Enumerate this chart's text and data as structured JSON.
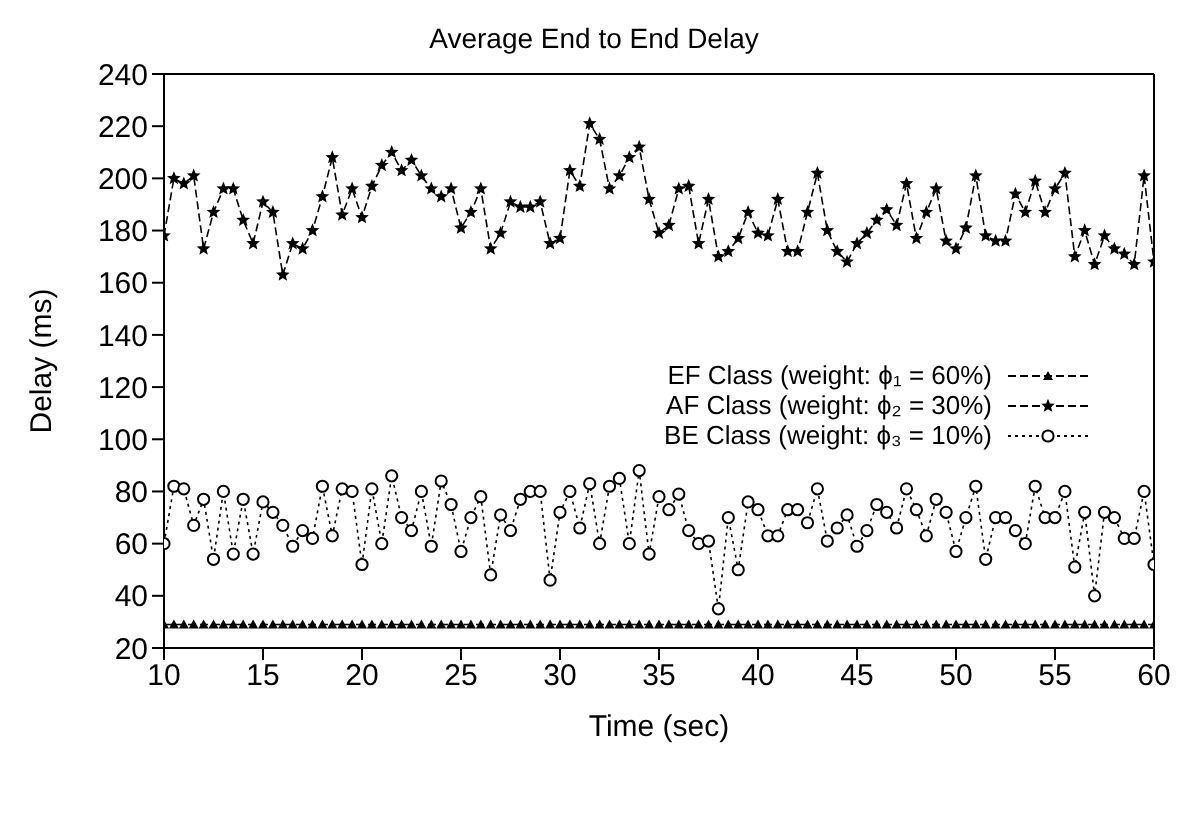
{
  "chart_data": {
    "type": "line",
    "title": "Average End to End Delay",
    "xlabel": "Time (sec)",
    "ylabel": "Delay (ms)",
    "x": [
      10,
      10.5,
      11,
      11.5,
      12,
      12.5,
      13,
      13.5,
      14,
      14.5,
      15,
      15.5,
      16,
      16.5,
      17,
      17.5,
      18,
      18.5,
      19,
      19.5,
      20,
      20.5,
      21,
      21.5,
      22,
      22.5,
      23,
      23.5,
      24,
      24.5,
      25,
      25.5,
      26,
      26.5,
      27,
      27.5,
      28,
      28.5,
      29,
      29.5,
      30,
      30.5,
      31,
      31.5,
      32,
      32.5,
      33,
      33.5,
      34,
      34.5,
      35,
      35.5,
      36,
      36.5,
      37,
      37.5,
      38,
      38.5,
      39,
      39.5,
      40,
      40.5,
      41,
      41.5,
      42,
      42.5,
      43,
      43.5,
      44,
      44.5,
      45,
      45.5,
      46,
      46.5,
      47,
      47.5,
      48,
      48.5,
      49,
      49.5,
      50,
      50.5,
      51,
      51.5,
      52,
      52.5,
      53,
      53.5,
      54,
      54.5,
      55,
      55.5,
      56,
      56.5,
      57,
      57.5,
      58,
      58.5,
      59,
      59.5,
      60
    ],
    "series": [
      {
        "name": "EF Class (weight: ϕ₁ = 60%)",
        "color": "#000000",
        "marker": "triangle",
        "line_style": "dashed",
        "values": [
          29,
          29,
          29,
          29,
          29,
          29,
          29,
          29,
          29,
          29,
          29,
          29,
          29,
          29,
          29,
          29,
          29,
          29,
          29,
          29,
          29,
          29,
          29,
          29,
          29,
          29,
          29,
          29,
          29,
          29,
          29,
          29,
          29,
          29,
          29,
          29,
          29,
          29,
          29,
          29,
          29,
          29,
          29,
          29,
          29,
          29,
          29,
          29,
          29,
          29,
          29,
          29,
          29,
          29,
          29,
          29,
          29,
          29,
          29,
          29,
          29,
          29,
          29,
          29,
          29,
          29,
          29,
          29,
          29,
          29,
          29,
          29,
          29,
          29,
          29,
          29,
          29,
          29,
          29,
          29,
          29,
          29,
          29,
          29,
          29,
          29,
          29,
          29,
          29,
          29,
          29,
          29,
          29,
          29,
          29,
          29,
          29,
          29,
          29,
          29,
          29
        ]
      },
      {
        "name": "AF Class (weight: ϕ₂ = 30%)",
        "color": "#000000",
        "marker": "star",
        "line_style": "dashed",
        "values": [
          178,
          200,
          198,
          201,
          173,
          187,
          196,
          196,
          184,
          175,
          191,
          187,
          163,
          175,
          173,
          180,
          193,
          208,
          186,
          196,
          185,
          197,
          205,
          210,
          203,
          207,
          201,
          196,
          193,
          196,
          181,
          187,
          196,
          173,
          179,
          191,
          189,
          189,
          191,
          175,
          177,
          203,
          197,
          221,
          215,
          196,
          201,
          208,
          212,
          192,
          179,
          182,
          196,
          197,
          175,
          192,
          170,
          172,
          177,
          187,
          179,
          178,
          192,
          172,
          172,
          187,
          202,
          180,
          172,
          168,
          175,
          179,
          184,
          188,
          182,
          198,
          177,
          187,
          196,
          176,
          173,
          181,
          201,
          178,
          176,
          176,
          194,
          187,
          199,
          187,
          196,
          202,
          170,
          180,
          167,
          178,
          173,
          171,
          167,
          201,
          168
        ]
      },
      {
        "name": "BE Class (weight: ϕ₃ = 10%)",
        "color": "#000000",
        "marker": "circle",
        "line_style": "dotted",
        "values": [
          60,
          82,
          81,
          67,
          77,
          54,
          80,
          56,
          77,
          56,
          76,
          72,
          67,
          59,
          65,
          62,
          82,
          63,
          81,
          80,
          52,
          81,
          60,
          86,
          70,
          65,
          80,
          59,
          84,
          75,
          57,
          70,
          78,
          48,
          71,
          65,
          77,
          80,
          80,
          46,
          72,
          80,
          66,
          83,
          60,
          82,
          85,
          60,
          88,
          56,
          78,
          73,
          79,
          65,
          60,
          61,
          35,
          70,
          50,
          76,
          73,
          63,
          63,
          73,
          73,
          68,
          81,
          61,
          66,
          71,
          59,
          65,
          75,
          72,
          66,
          81,
          73,
          63,
          77,
          72,
          57,
          70,
          82,
          54,
          70,
          70,
          65,
          60,
          82,
          70,
          70,
          80,
          51,
          72,
          40,
          72,
          70,
          62,
          62,
          80,
          52
        ]
      }
    ],
    "xlim": [
      10,
      60
    ],
    "xticks": [
      10,
      15,
      20,
      25,
      30,
      35,
      40,
      45,
      50,
      55,
      60
    ],
    "ylim": [
      20,
      240
    ],
    "yticks": [
      20,
      40,
      60,
      80,
      100,
      120,
      140,
      160,
      180,
      200,
      220,
      240
    ],
    "grid": false,
    "legend": "right"
  }
}
